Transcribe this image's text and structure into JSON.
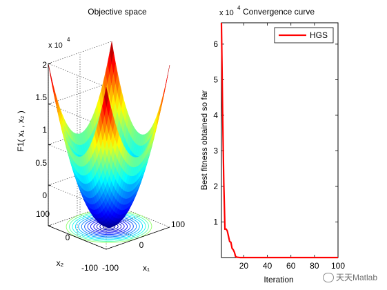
{
  "chart_data": [
    {
      "type": "surface",
      "title": "Objective space",
      "zlabel": "F1( x₁ , x₂ )",
      "xlabel": "x₁",
      "ylabel": "x₂",
      "x_ticks": [
        "-100",
        "0",
        "100"
      ],
      "y_ticks": [
        "-100",
        "0",
        "100"
      ],
      "z_ticks": [
        "0",
        "0.5",
        "1",
        "1.5",
        "2"
      ],
      "z_exponent_label": "x 10",
      "z_exponent_power": "4",
      "xlim": [
        -100,
        100
      ],
      "ylim": [
        -100,
        100
      ],
      "zlim": [
        0,
        20000
      ],
      "function": "x1^2 + x2^2",
      "grid": true,
      "contours_on_floor": true,
      "colormap": "jet"
    },
    {
      "type": "line",
      "title": "Convergence curve",
      "xlabel": "Iteration",
      "ylabel": "Best fitness obtained so far",
      "x_ticks": [
        "20",
        "40",
        "60",
        "80",
        "100"
      ],
      "y_ticks": [
        "1",
        "2",
        "3",
        "4",
        "5",
        "6"
      ],
      "y_exponent_label": "x 10",
      "y_exponent_power": "4",
      "xlim": [
        1,
        100
      ],
      "ylim": [
        0,
        66000
      ],
      "legend_position": "top-right",
      "series": [
        {
          "name": "HGS",
          "color": "#ff0000",
          "x": [
            1,
            2,
            3,
            4,
            5,
            6,
            7,
            8,
            9,
            10,
            11,
            12,
            13,
            14,
            15,
            16,
            17,
            18,
            19,
            20,
            25,
            30,
            40,
            50,
            60,
            70,
            80,
            90,
            100
          ],
          "y": [
            66000,
            41000,
            21000,
            8000,
            8000,
            7500,
            6000,
            4500,
            4300,
            2600,
            2200,
            1500,
            300,
            100,
            50,
            20,
            5,
            2,
            1,
            0,
            0,
            0,
            0,
            0,
            0,
            0,
            0,
            0,
            0
          ]
        }
      ]
    }
  ],
  "watermark": {
    "text": "天天Matlab"
  }
}
